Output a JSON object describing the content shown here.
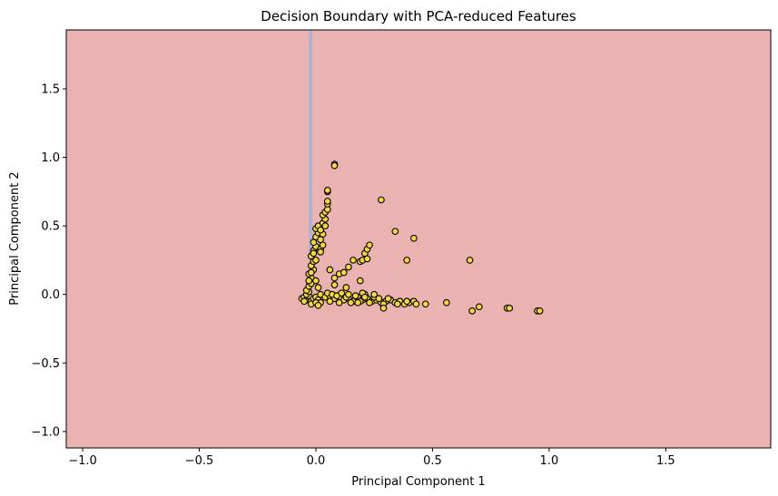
{
  "chart_data": {
    "type": "scatter",
    "title": "Decision Boundary with PCA-reduced Features",
    "xlabel": "Principal Component 1",
    "ylabel": "Principal Component 2",
    "xlim": [
      -1.07,
      1.95
    ],
    "ylim": [
      -1.12,
      1.93
    ],
    "xticks": [
      -1.0,
      -0.5,
      0.0,
      0.5,
      1.0,
      1.5
    ],
    "xtick_labels": [
      "−1.0",
      "−0.5",
      "0.0",
      "0.5",
      "1.0",
      "1.5"
    ],
    "yticks": [
      -1.0,
      -0.5,
      0.0,
      0.5,
      1.0,
      1.5
    ],
    "ytick_labels": [
      "−1.0",
      "−0.5",
      "0.0",
      "0.5",
      "1.0",
      "1.5"
    ],
    "grid": false,
    "legend": "none",
    "background_region_color": "#eab3b1",
    "boundary_region_color": "#a8b4db",
    "boundary_region_x": [
      -0.03,
      -0.015
    ],
    "point_fill": "#f5d73b",
    "point_edge": "#000000",
    "points": [
      [
        -0.06,
        -0.03
      ],
      [
        -0.05,
        -0.02
      ],
      [
        -0.04,
        -0.04
      ],
      [
        -0.03,
        -0.01
      ],
      [
        -0.02,
        -0.05
      ],
      [
        -0.01,
        -0.03
      ],
      [
        0.0,
        -0.02
      ],
      [
        0.01,
        -0.04
      ],
      [
        0.02,
        -0.06
      ],
      [
        -0.04,
        0.0
      ],
      [
        -0.03,
        0.02
      ],
      [
        -0.02,
        -0.07
      ],
      [
        0.0,
        -0.06
      ],
      [
        0.01,
        -0.08
      ],
      [
        -0.05,
        -0.05
      ],
      [
        -0.04,
        0.03
      ],
      [
        -0.03,
        0.06
      ],
      [
        -0.02,
        0.08
      ],
      [
        -0.02,
        0.12
      ],
      [
        -0.03,
        0.15
      ],
      [
        -0.01,
        0.18
      ],
      [
        -0.02,
        0.21
      ],
      [
        -0.01,
        0.24
      ],
      [
        -0.02,
        0.28
      ],
      [
        -0.01,
        0.32
      ],
      [
        0.0,
        0.35
      ],
      [
        -0.01,
        0.38
      ],
      [
        0.0,
        0.42
      ],
      [
        0.01,
        0.45
      ],
      [
        0.0,
        0.48
      ],
      [
        0.01,
        0.5
      ],
      [
        -0.01,
        0.3
      ],
      [
        0.0,
        0.25
      ],
      [
        -0.02,
        0.16
      ],
      [
        -0.03,
        0.1
      ],
      [
        0.02,
        0.33
      ],
      [
        0.03,
        0.36
      ],
      [
        0.02,
        0.4
      ],
      [
        0.03,
        0.44
      ],
      [
        0.02,
        0.47
      ],
      [
        0.03,
        0.52
      ],
      [
        0.04,
        0.55
      ],
      [
        0.03,
        0.58
      ],
      [
        0.04,
        0.6
      ],
      [
        0.05,
        0.62
      ],
      [
        0.05,
        0.66
      ],
      [
        0.05,
        0.68
      ],
      [
        0.05,
        0.75
      ],
      [
        0.05,
        0.76
      ],
      [
        0.08,
        0.95
      ],
      [
        0.08,
        0.94
      ],
      [
        0.04,
        0.5
      ],
      [
        0.02,
        0.31
      ],
      [
        0.01,
        0.05
      ],
      [
        0.0,
        0.1
      ],
      [
        0.02,
        0.0
      ],
      [
        0.04,
        -0.02
      ],
      [
        0.06,
        -0.01
      ],
      [
        0.08,
        -0.03
      ],
      [
        0.1,
        -0.02
      ],
      [
        0.12,
        -0.04
      ],
      [
        0.14,
        -0.03
      ],
      [
        0.16,
        -0.05
      ],
      [
        0.18,
        -0.02
      ],
      [
        0.2,
        -0.04
      ],
      [
        0.22,
        -0.03
      ],
      [
        0.24,
        -0.05
      ],
      [
        0.26,
        -0.04
      ],
      [
        0.28,
        -0.06
      ],
      [
        0.3,
        -0.05
      ],
      [
        0.32,
        -0.04
      ],
      [
        0.34,
        -0.06
      ],
      [
        0.36,
        -0.05
      ],
      [
        0.38,
        -0.07
      ],
      [
        0.4,
        -0.06
      ],
      [
        0.42,
        -0.05
      ],
      [
        0.43,
        -0.07
      ],
      [
        0.05,
        0.01
      ],
      [
        0.07,
        0.0
      ],
      [
        0.09,
        -0.01
      ],
      [
        0.11,
        0.01
      ],
      [
        0.13,
        -0.02
      ],
      [
        0.15,
        -0.06
      ],
      [
        0.17,
        -0.01
      ],
      [
        0.19,
        -0.05
      ],
      [
        0.21,
        0.0
      ],
      [
        0.23,
        -0.06
      ],
      [
        0.25,
        -0.02
      ],
      [
        0.27,
        -0.03
      ],
      [
        0.29,
        -0.07
      ],
      [
        0.31,
        -0.03
      ],
      [
        0.35,
        -0.07
      ],
      [
        0.39,
        -0.05
      ],
      [
        0.06,
        -0.05
      ],
      [
        0.1,
        -0.06
      ],
      [
        0.14,
        0.0
      ],
      [
        0.18,
        -0.06
      ],
      [
        0.47,
        -0.07
      ],
      [
        0.56,
        -0.06
      ],
      [
        0.67,
        -0.12
      ],
      [
        0.7,
        -0.09
      ],
      [
        0.82,
        -0.1
      ],
      [
        0.83,
        -0.1
      ],
      [
        0.95,
        -0.12
      ],
      [
        0.96,
        -0.12
      ],
      [
        0.08,
        0.12
      ],
      [
        0.1,
        0.15
      ],
      [
        0.12,
        0.16
      ],
      [
        0.06,
        0.18
      ],
      [
        0.14,
        0.2
      ],
      [
        0.08,
        0.07
      ],
      [
        0.13,
        0.05
      ],
      [
        0.16,
        0.25
      ],
      [
        0.19,
        0.24
      ],
      [
        0.2,
        0.25
      ],
      [
        0.21,
        0.3
      ],
      [
        0.22,
        0.33
      ],
      [
        0.23,
        0.36
      ],
      [
        0.22,
        0.26
      ],
      [
        0.19,
        0.1
      ],
      [
        0.28,
        0.69
      ],
      [
        0.34,
        0.46
      ],
      [
        0.42,
        0.41
      ],
      [
        0.39,
        0.25
      ],
      [
        0.66,
        0.25
      ],
      [
        0.29,
        -0.1
      ],
      [
        0.2,
        0.01
      ],
      [
        0.25,
        0.0
      ],
      [
        0.21,
        -0.02
      ]
    ]
  }
}
